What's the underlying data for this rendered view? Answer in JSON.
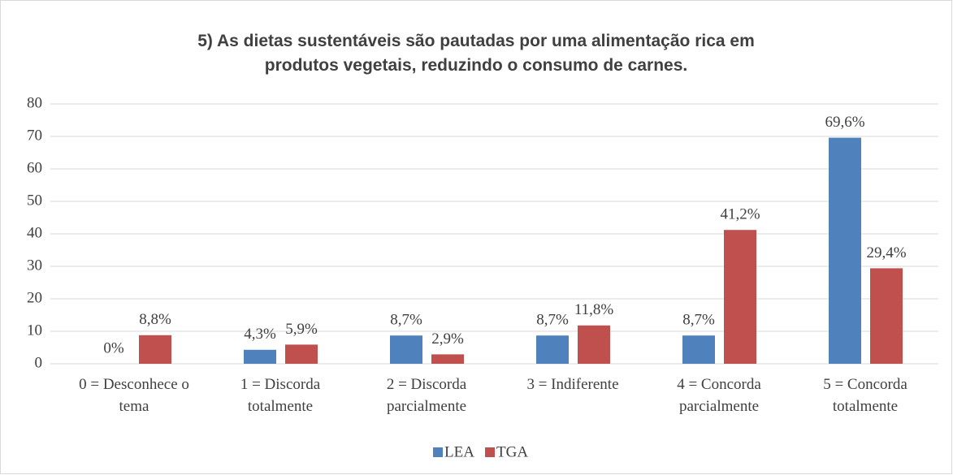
{
  "chart_data": {
    "type": "bar",
    "title": "5) As dietas sustentáveis são pautadas por uma alimentação rica em produtos vegetais, reduzindo o consumo de carnes.",
    "categories": [
      "0 = Desconhece o tema",
      "1 = Discorda totalmente",
      "2 = Discorda parcialmente",
      "3 = Indiferente",
      "4 = Concorda parcialmente",
      "5 = Concorda totalmente"
    ],
    "series": [
      {
        "name": "LEA",
        "color": "#4f81bd",
        "values": [
          0,
          4.3,
          8.7,
          8.7,
          8.7,
          69.6
        ],
        "value_labels": [
          "0%",
          "4,3%",
          "8,7%",
          "8,7%",
          "8,7%",
          "69,6%"
        ]
      },
      {
        "name": "TGA",
        "color": "#c0504d",
        "values": [
          8.8,
          5.9,
          2.9,
          11.8,
          41.2,
          29.4
        ],
        "value_labels": [
          "8,8%",
          "5,9%",
          "2,9%",
          "11,8%",
          "41,2%",
          "29,4%"
        ]
      }
    ],
    "ylim": [
      0,
      80
    ],
    "yticks": [
      0,
      10,
      20,
      30,
      40,
      50,
      60,
      70,
      80
    ],
    "grid": true,
    "legend": "bottom"
  }
}
